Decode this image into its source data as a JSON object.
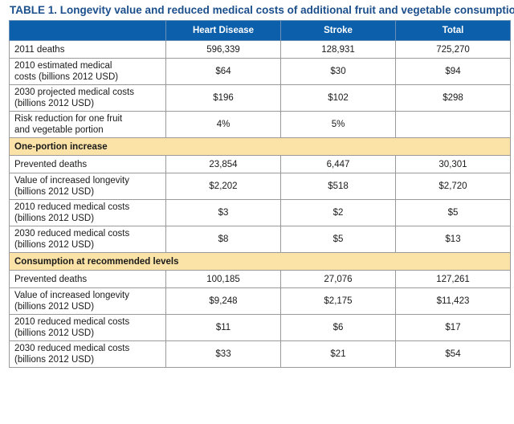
{
  "title": {
    "label": "TABLE 1.",
    "text": "Longevity value and reduced medical costs of additional fruit and vegetable consumption"
  },
  "columns": [
    "",
    "Heart Disease",
    "Stroke",
    "Total"
  ],
  "rows": [
    {
      "type": "single",
      "label_lines": [
        "2011 deaths"
      ],
      "values": [
        "596,339",
        "128,931",
        "725,270"
      ]
    },
    {
      "type": "double",
      "label_lines": [
        "2010 estimated medical",
        "costs (billions 2012 USD)"
      ],
      "values": [
        "$64",
        "$30",
        "$94"
      ]
    },
    {
      "type": "double",
      "label_lines": [
        "2030 projected medical costs",
        "(billions 2012 USD)"
      ],
      "values": [
        "$196",
        "$102",
        "$298"
      ]
    },
    {
      "type": "double",
      "label_lines": [
        "Risk reduction for one fruit",
        "and vegetable portion"
      ],
      "values": [
        "4%",
        "5%",
        ""
      ]
    },
    {
      "type": "section",
      "label_lines": [
        "One-portion increase"
      ]
    },
    {
      "type": "single",
      "label_lines": [
        "Prevented deaths"
      ],
      "values": [
        "23,854",
        "6,447",
        "30,301"
      ]
    },
    {
      "type": "double",
      "label_lines": [
        "Value of increased longevity",
        "(billions 2012 USD)"
      ],
      "values": [
        "$2,202",
        "$518",
        "$2,720"
      ]
    },
    {
      "type": "double",
      "label_lines": [
        "2010 reduced medical costs",
        "(billions 2012 USD)"
      ],
      "values": [
        "$3",
        "$2",
        "$5"
      ]
    },
    {
      "type": "double",
      "label_lines": [
        "2030 reduced medical costs",
        "(billions 2012 USD)"
      ],
      "values": [
        "$8",
        "$5",
        "$13"
      ]
    },
    {
      "type": "section",
      "label_lines": [
        "Consumption at recommended levels"
      ]
    },
    {
      "type": "single",
      "label_lines": [
        "Prevented deaths"
      ],
      "values": [
        "100,185",
        "27,076",
        "127,261"
      ]
    },
    {
      "type": "double",
      "label_lines": [
        "Value of increased longevity",
        "(billions 2012 USD)"
      ],
      "values": [
        "$9,248",
        "$2,175",
        "$11,423"
      ]
    },
    {
      "type": "double",
      "label_lines": [
        "2010 reduced medical costs",
        "(billions 2012 USD)"
      ],
      "values": [
        "$11",
        "$6",
        "$17"
      ]
    },
    {
      "type": "double",
      "label_lines": [
        "2030 reduced medical costs",
        "(billions 2012 USD)"
      ],
      "values": [
        "$33",
        "$21",
        "$54"
      ]
    }
  ],
  "colors": {
    "header_bg": "#0b5fab",
    "section_bg": "#fbe3a7",
    "title": "#1b4f8c"
  }
}
